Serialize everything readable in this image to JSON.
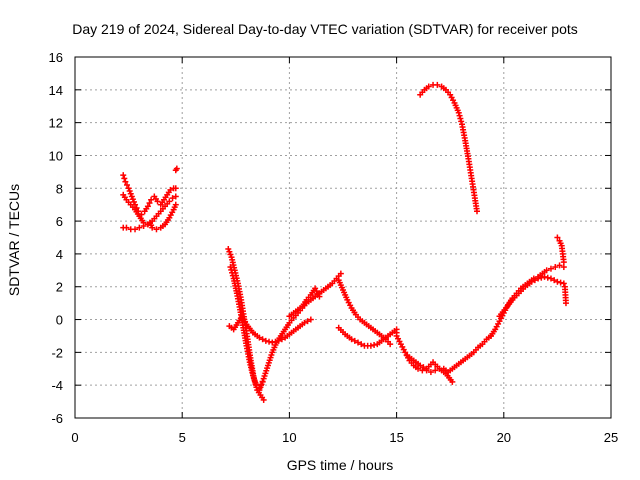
{
  "chart_data": {
    "type": "scatter",
    "title": "Day 219 of 2024, Sidereal Day-to-day VTEC variation (SDTVAR) for receiver pots",
    "xlabel": "GPS time / hours",
    "ylabel": "SDTVAR / TECUs",
    "xlim": [
      0,
      25
    ],
    "ylim": [
      -6,
      16
    ],
    "xticks": [
      0,
      5,
      10,
      15,
      20,
      25
    ],
    "yticks": [
      -6,
      -4,
      -2,
      0,
      2,
      4,
      6,
      8,
      10,
      12,
      14,
      16
    ],
    "grid": true,
    "marker": "+",
    "color": "#ff0000",
    "series": [
      {
        "name": "SDTVAR",
        "x": [
          2.25,
          2.35,
          2.5,
          2.65,
          2.8,
          2.95,
          3.1,
          3.25,
          3.4,
          3.55,
          3.7,
          3.85,
          4.0,
          4.15,
          4.3,
          4.45,
          4.6,
          4.7,
          2.25,
          2.4,
          2.6,
          2.8,
          3.0,
          3.2,
          3.4,
          3.6,
          3.8,
          4.0,
          4.2,
          4.4,
          4.55,
          4.7,
          2.25,
          2.4,
          2.6,
          2.8,
          3.0,
          3.2,
          3.4,
          3.5,
          3.6,
          3.8,
          4.0,
          4.2,
          4.4,
          4.6,
          4.7,
          4.7,
          4.75,
          7.15,
          7.3,
          7.45,
          7.6,
          7.75,
          7.9,
          8.05,
          8.2,
          8.35,
          8.5,
          8.65,
          8.8,
          7.25,
          7.4,
          7.55,
          7.7,
          7.85,
          8.0,
          8.15,
          8.3,
          8.45,
          8.6,
          8.75,
          7.2,
          7.4,
          7.6,
          7.8,
          8.0,
          8.3,
          8.6,
          8.9,
          9.2,
          9.5,
          9.8,
          10.1,
          10.4,
          10.7,
          11.0,
          8.6,
          8.8,
          9.0,
          9.2,
          9.4,
          9.6,
          9.8,
          10.0,
          10.2,
          10.4,
          10.6,
          10.8,
          11.0,
          11.2,
          11.4,
          11.6,
          11.8,
          12.0,
          12.2,
          12.4,
          10.0,
          10.2,
          10.4,
          10.6,
          10.8,
          11.0,
          11.2,
          11.4,
          12.3,
          12.5,
          12.7,
          12.9,
          13.1,
          13.3,
          13.5,
          13.7,
          13.9,
          14.1,
          14.3,
          14.5,
          14.7,
          12.3,
          12.6,
          12.9,
          13.2,
          13.5,
          13.8,
          14.1,
          14.4,
          14.7,
          15.0,
          15.0,
          15.2,
          15.4,
          15.6,
          15.8,
          16.0,
          16.2,
          16.4,
          16.6,
          16.8,
          17.0,
          17.2,
          17.4,
          17.6,
          17.8,
          18.0,
          18.2,
          18.4,
          18.6,
          18.8,
          19.0,
          19.2,
          19.4,
          15.5,
          15.8,
          16.1,
          16.4,
          16.7,
          17.0,
          17.3,
          17.6,
          19.4,
          19.6,
          19.8,
          20.0,
          20.2,
          20.4,
          20.6,
          20.8,
          21.0,
          21.2,
          21.4,
          21.6,
          21.8,
          22.0,
          22.2,
          22.4,
          22.6,
          22.8,
          19.8,
          20.1,
          20.4,
          20.7,
          21.0,
          21.3,
          21.6,
          21.9,
          22.2,
          22.5,
          22.8,
          22.5,
          22.6,
          22.7,
          22.8,
          22.85,
          22.9,
          16.1,
          16.3,
          16.5,
          16.7,
          16.9,
          17.1,
          17.3,
          17.5,
          17.7,
          17.9,
          18.05,
          18.2,
          18.35,
          18.5,
          18.65,
          18.75
        ],
        "y": [
          8.8,
          8.4,
          8.0,
          7.5,
          7.0,
          6.6,
          6.4,
          6.6,
          6.9,
          7.3,
          7.5,
          7.2,
          7.0,
          7.3,
          7.6,
          7.9,
          8.0,
          8.0,
          7.6,
          7.3,
          7.0,
          6.7,
          6.3,
          5.9,
          5.8,
          6.0,
          6.3,
          6.6,
          6.9,
          7.2,
          7.4,
          7.5,
          5.6,
          5.6,
          5.5,
          5.5,
          5.6,
          5.7,
          5.8,
          5.9,
          5.6,
          5.5,
          5.6,
          5.8,
          6.2,
          6.7,
          7.0,
          9.1,
          9.2,
          4.3,
          3.8,
          3.0,
          2.2,
          1.2,
          0.0,
          -1.2,
          -2.5,
          -3.6,
          -4.3,
          -4.6,
          -4.9,
          3.2,
          2.5,
          1.6,
          0.6,
          -0.5,
          -1.6,
          -2.6,
          -3.4,
          -4.0,
          -4.2,
          -3.8,
          -0.4,
          -0.6,
          -0.2,
          0.2,
          -0.3,
          -0.8,
          -1.1,
          -1.3,
          -1.4,
          -1.3,
          -1.1,
          -0.8,
          -0.5,
          -0.2,
          0.0,
          -4.3,
          -3.6,
          -2.8,
          -2.0,
          -1.4,
          -1.0,
          -0.6,
          -0.2,
          0.1,
          0.4,
          0.7,
          1.0,
          1.2,
          1.4,
          1.6,
          1.8,
          2.0,
          2.2,
          2.5,
          2.8,
          0.2,
          0.4,
          0.6,
          0.8,
          1.2,
          1.5,
          1.9,
          1.4,
          2.4,
          1.8,
          1.2,
          0.7,
          0.3,
          0.0,
          -0.2,
          -0.4,
          -0.6,
          -0.8,
          -1.0,
          -1.2,
          -1.5,
          -0.5,
          -0.9,
          -1.2,
          -1.4,
          -1.6,
          -1.6,
          -1.5,
          -1.2,
          -0.9,
          -0.6,
          -1.0,
          -1.5,
          -2.0,
          -2.5,
          -2.8,
          -3.0,
          -3.1,
          -3.1,
          -3.2,
          -3.1,
          -3.0,
          -3.0,
          -3.2,
          -3.0,
          -2.8,
          -2.6,
          -2.4,
          -2.2,
          -2.0,
          -1.7,
          -1.5,
          -1.2,
          -1.0,
          -2.2,
          -2.5,
          -2.8,
          -3.0,
          -2.6,
          -3.0,
          -3.3,
          -3.8,
          -1.0,
          -0.6,
          -0.1,
          0.4,
          0.9,
          1.3,
          1.6,
          1.9,
          2.1,
          2.3,
          2.5,
          2.6,
          2.8,
          3.0,
          3.1,
          3.2,
          3.3,
          3.2,
          0.2,
          0.7,
          1.2,
          1.6,
          2.0,
          2.3,
          2.5,
          2.6,
          2.5,
          2.3,
          2.2,
          5.0,
          4.8,
          4.5,
          3.5,
          2.0,
          1.0,
          13.7,
          14.0,
          14.2,
          14.3,
          14.3,
          14.2,
          14.0,
          13.7,
          13.2,
          12.6,
          11.9,
          10.9,
          9.8,
          8.6,
          7.4,
          6.6
        ]
      }
    ]
  }
}
